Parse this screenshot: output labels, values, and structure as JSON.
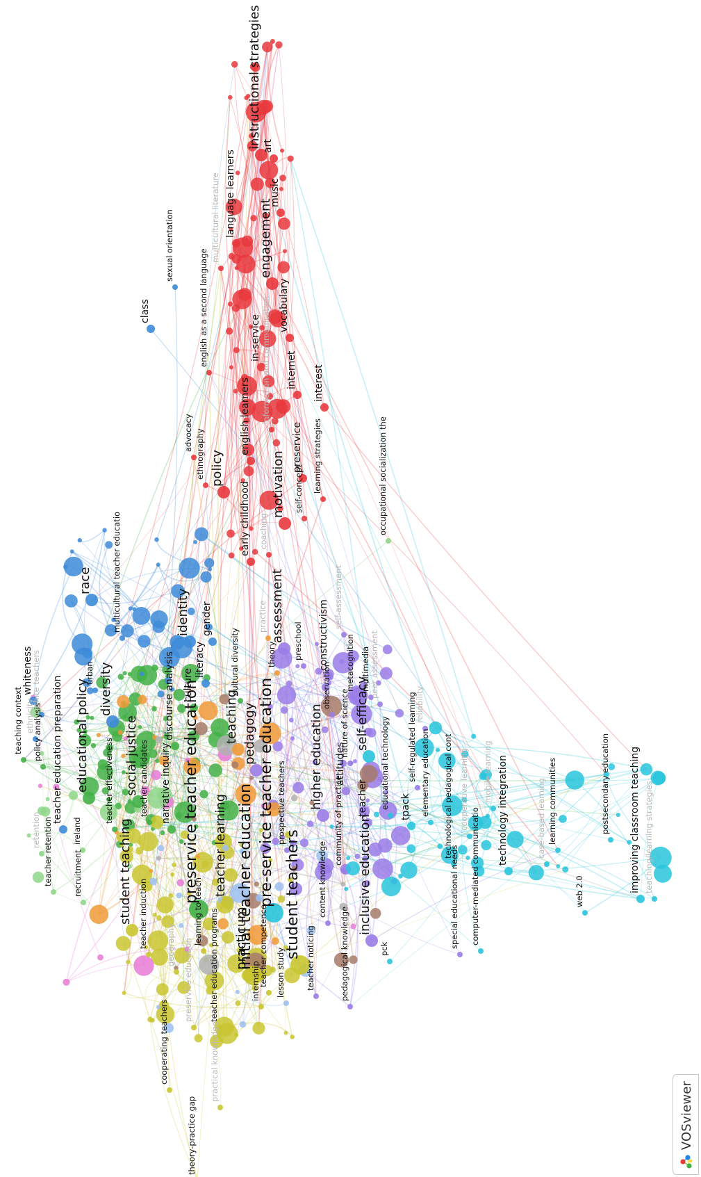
{
  "app": {
    "name": "VOSviewer",
    "icon": "vosviewer-logo-icon"
  },
  "colors": {
    "red": "#e8383d",
    "purple": "#9a7de6",
    "green": "#43b047",
    "yellow_green": "#c9c531",
    "cyan": "#29c4dc",
    "blue": "#3d8bd8",
    "orange": "#f09a38",
    "brown": "#a77b6a",
    "pink": "#e87bd6",
    "light_blue": "#9cc0ee",
    "light_green": "#8fd68a",
    "grey": "#b0b0b0"
  },
  "keywords": [
    {
      "label": "instructional strategies",
      "cluster": "red",
      "weight": 3
    },
    {
      "label": "art",
      "cluster": "red",
      "weight": 2
    },
    {
      "label": "music",
      "cluster": "red",
      "weight": 2
    },
    {
      "label": "language learners",
      "cluster": "red",
      "weight": 2
    },
    {
      "label": "engagement",
      "cluster": "red",
      "weight": 3
    },
    {
      "label": "vocabulary",
      "cluster": "red",
      "weight": 2
    },
    {
      "label": "english as a second language",
      "cluster": "red",
      "weight": 1
    },
    {
      "label": "multicultural literature",
      "cluster": "red",
      "weight": 1,
      "faint": true
    },
    {
      "label": "in-service",
      "cluster": "red",
      "weight": 2
    },
    {
      "label": "information and communication",
      "cluster": "red",
      "weight": 1,
      "faint": true
    },
    {
      "label": "internet",
      "cluster": "red",
      "weight": 2
    },
    {
      "label": "interest",
      "cluster": "red",
      "weight": 2
    },
    {
      "label": "english learners",
      "cluster": "red",
      "weight": 2
    },
    {
      "label": "preservice",
      "cluster": "red",
      "weight": 2
    },
    {
      "label": "learning strategies",
      "cluster": "red",
      "weight": 1
    },
    {
      "label": "motivation",
      "cluster": "red",
      "weight": 3
    },
    {
      "label": "self-concept",
      "cluster": "red",
      "weight": 1
    },
    {
      "label": "early childhood",
      "cluster": "red",
      "weight": 2
    },
    {
      "label": "coaching",
      "cluster": "red",
      "weight": 1,
      "faint": true
    },
    {
      "label": "advocacy",
      "cluster": "red",
      "weight": 1
    },
    {
      "label": "ethnography",
      "cluster": "red",
      "weight": 1
    },
    {
      "label": "policy",
      "cluster": "red",
      "weight": 3
    },
    {
      "label": "occupational socialization the",
      "cluster": "light_green",
      "weight": 1
    },
    {
      "label": "sexual orientation",
      "cluster": "blue",
      "weight": 1
    },
    {
      "label": "class",
      "cluster": "blue",
      "weight": 2
    },
    {
      "label": "race",
      "cluster": "blue",
      "weight": 3
    },
    {
      "label": "multicultural teacher educatio",
      "cluster": "blue",
      "weight": 1
    },
    {
      "label": "identity",
      "cluster": "blue",
      "weight": 3
    },
    {
      "label": "gender",
      "cluster": "blue",
      "weight": 2
    },
    {
      "label": "whiteness",
      "cluster": "blue",
      "weight": 2
    },
    {
      "label": "white teachers",
      "cluster": "blue",
      "weight": 1,
      "faint": true
    },
    {
      "label": "urban",
      "cluster": "blue",
      "weight": 1
    },
    {
      "label": "teacher education preparation",
      "cluster": "blue",
      "weight": 2
    },
    {
      "label": "diversity",
      "cluster": "blue",
      "weight": 3
    },
    {
      "label": "literacy",
      "cluster": "blue",
      "weight": 2
    },
    {
      "label": "cultural diversity",
      "cluster": "green",
      "weight": 1
    },
    {
      "label": "theory",
      "cluster": "orange",
      "weight": 1
    },
    {
      "label": "practice",
      "cluster": "orange",
      "weight": 1,
      "faint": true
    },
    {
      "label": "assessment",
      "cluster": "purple",
      "weight": 3
    },
    {
      "label": "preschool",
      "cluster": "purple",
      "weight": 1
    },
    {
      "label": "constructivism",
      "cluster": "purple",
      "weight": 2
    },
    {
      "label": "self-assessment",
      "cluster": "purple",
      "weight": 1,
      "faint": true
    },
    {
      "label": "metacognition",
      "cluster": "purple",
      "weight": 1
    },
    {
      "label": "multimedia",
      "cluster": "purple",
      "weight": 1
    },
    {
      "label": "peer assessment",
      "cluster": "purple",
      "weight": 1,
      "faint": true
    },
    {
      "label": "observation",
      "cluster": "purple",
      "weight": 1
    },
    {
      "label": "teaching context",
      "cluster": "green",
      "weight": 1
    },
    {
      "label": "policy analysis",
      "cluster": "green",
      "weight": 1
    },
    {
      "label": "ethnicity",
      "cluster": "blue",
      "weight": 1,
      "faint": true
    },
    {
      "label": "educational policy",
      "cluster": "green",
      "weight": 3
    },
    {
      "label": "discourse analysis",
      "cluster": "green",
      "weight": 2
    },
    {
      "label": "culture",
      "cluster": "green",
      "weight": 2
    },
    {
      "label": "social justice",
      "cluster": "green",
      "weight": 3
    },
    {
      "label": "teacher candidates",
      "cluster": "green",
      "weight": 1
    },
    {
      "label": "narrative inquiry",
      "cluster": "green",
      "weight": 2
    },
    {
      "label": "teacher effectiveness",
      "cluster": "green",
      "weight": 1
    },
    {
      "label": "preservice teacher education",
      "cluster": "green",
      "weight": 4
    },
    {
      "label": "teaching",
      "cluster": "orange",
      "weight": 3
    },
    {
      "label": "pedagogy",
      "cluster": "purple",
      "weight": 3
    },
    {
      "label": "pre-service teacher education",
      "cluster": "cyan",
      "weight": 4
    },
    {
      "label": "prospective teachers",
      "cluster": "purple",
      "weight": 1
    },
    {
      "label": "higher education",
      "cluster": "purple",
      "weight": 3
    },
    {
      "label": "self-efficacy",
      "cluster": "cyan",
      "weight": 3
    },
    {
      "label": "nature of science",
      "cluster": "purple",
      "weight": 1
    },
    {
      "label": "reliability",
      "cluster": "purple",
      "weight": 1,
      "faint": true
    },
    {
      "label": "self-regulated learning",
      "cluster": "purple",
      "weight": 1
    },
    {
      "label": "educational technology",
      "cluster": "cyan",
      "weight": 1
    },
    {
      "label": "attitudes",
      "cluster": "purple",
      "weight": 2
    },
    {
      "label": "community of practice",
      "cluster": "purple",
      "weight": 1
    },
    {
      "label": "teacher",
      "cluster": "purple",
      "weight": 2
    },
    {
      "label": "tpack",
      "cluster": "cyan",
      "weight": 2
    },
    {
      "label": "elementary education",
      "cluster": "cyan",
      "weight": 1
    },
    {
      "label": "technological pedagogical cont",
      "cluster": "cyan",
      "weight": 1
    },
    {
      "label": "cooperative learning",
      "cluster": "cyan",
      "weight": 1,
      "faint": true
    },
    {
      "label": "mobile learning",
      "cluster": "cyan",
      "weight": 1,
      "faint": true
    },
    {
      "label": "technology integration",
      "cluster": "cyan",
      "weight": 2
    },
    {
      "label": "learning communities",
      "cluster": "cyan",
      "weight": 1
    },
    {
      "label": "case-based learning",
      "cluster": "cyan",
      "weight": 1,
      "faint": true
    },
    {
      "label": "postsecondary education",
      "cluster": "cyan",
      "weight": 1
    },
    {
      "label": "improving classroom teaching",
      "cluster": "cyan",
      "weight": 2
    },
    {
      "label": "teaching/learning strategies",
      "cluster": "cyan",
      "weight": 1,
      "faint": true
    },
    {
      "label": "computer-mediated communicatio",
      "cluster": "cyan",
      "weight": 1
    },
    {
      "label": "web 2.0",
      "cluster": "cyan",
      "weight": 1
    },
    {
      "label": "special educational needs",
      "cluster": "purple",
      "weight": 1
    },
    {
      "label": "inclusive education",
      "cluster": "purple",
      "weight": 3
    },
    {
      "label": "content knowledge",
      "cluster": "purple",
      "weight": 1
    },
    {
      "label": "pck",
      "cluster": "cyan",
      "weight": 1
    },
    {
      "label": "pedagogical knowledge",
      "cluster": "purple",
      "weight": 1
    },
    {
      "label": "teacher noticing",
      "cluster": "purple",
      "weight": 1
    },
    {
      "label": "student teachers",
      "cluster": "yellow_green",
      "weight": 4
    },
    {
      "label": "initial teacher education",
      "cluster": "yellow_green",
      "weight": 4
    },
    {
      "label": "teacher learning",
      "cluster": "yellow_green",
      "weight": 3
    },
    {
      "label": "lesson study",
      "cluster": "light_blue",
      "weight": 1
    },
    {
      "label": "teacher competence",
      "cluster": "yellow_green",
      "weight": 1
    },
    {
      "label": "practicum",
      "cluster": "yellow_green",
      "weight": 3
    },
    {
      "label": "internship",
      "cluster": "yellow_green",
      "weight": 1
    },
    {
      "label": "teacher education programs",
      "cluster": "yellow_green",
      "weight": 1
    },
    {
      "label": "learning to teach",
      "cluster": "yellow_green",
      "weight": 1
    },
    {
      "label": "preservice education",
      "cluster": "yellow_green",
      "weight": 1,
      "faint": true
    },
    {
      "label": "geography",
      "cluster": "yellow_green",
      "weight": 1,
      "faint": true
    },
    {
      "label": "practical knowledge",
      "cluster": "yellow_green",
      "weight": 1,
      "faint": true
    },
    {
      "label": "theory-practice gap",
      "cluster": "yellow_green",
      "weight": 1
    },
    {
      "label": "cooperating teachers",
      "cluster": "yellow_green",
      "weight": 1
    },
    {
      "label": "teacher induction",
      "cluster": "yellow_green",
      "weight": 1
    },
    {
      "label": "student teaching",
      "cluster": "yellow_green",
      "weight": 3
    },
    {
      "label": "recruitment",
      "cluster": "light_green",
      "weight": 1
    },
    {
      "label": "ireland",
      "cluster": "light_green",
      "weight": 1
    },
    {
      "label": "teacher retention",
      "cluster": "light_green",
      "weight": 1
    },
    {
      "label": "retention",
      "cluster": "light_green",
      "weight": 1,
      "faint": true
    }
  ]
}
